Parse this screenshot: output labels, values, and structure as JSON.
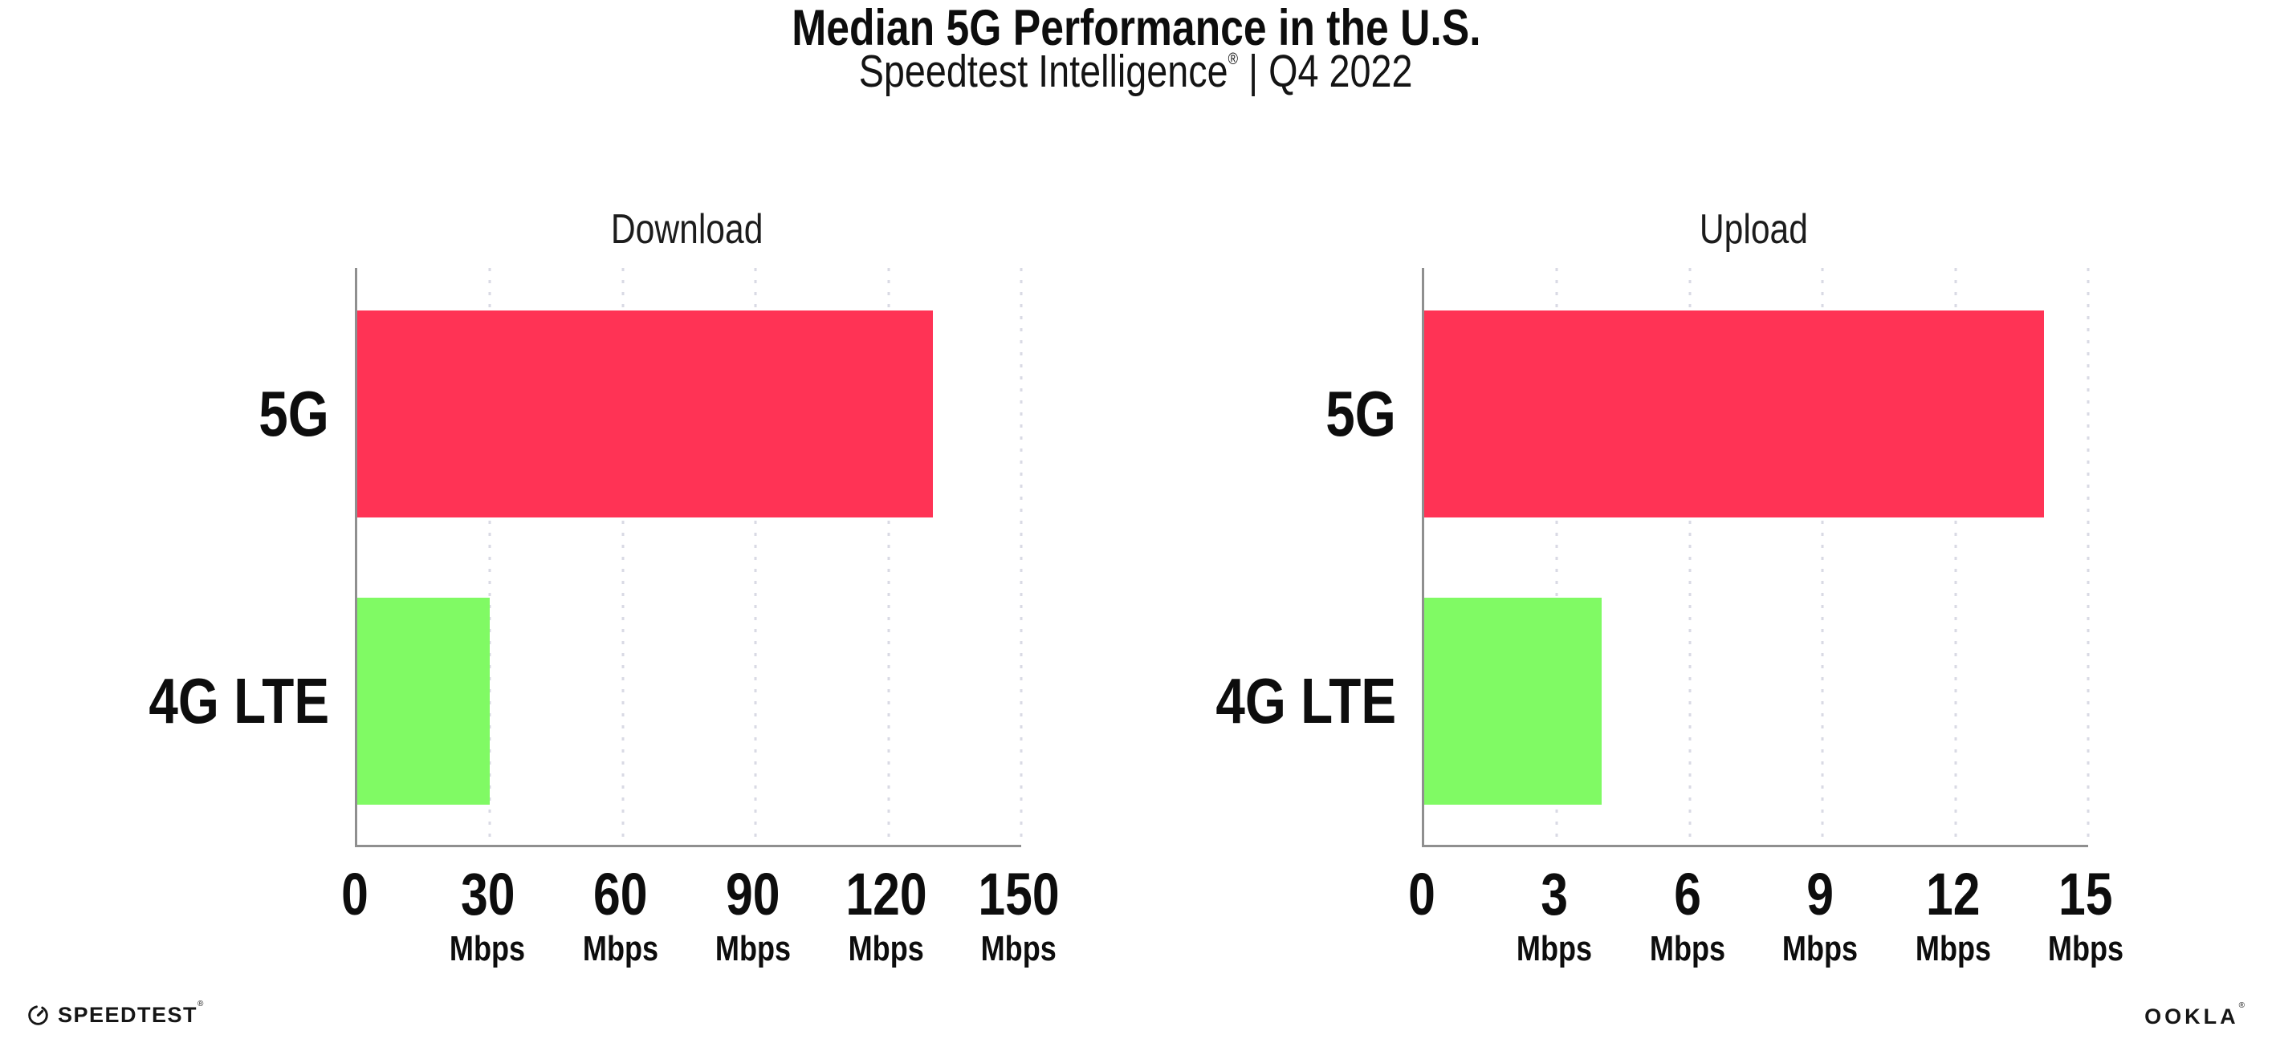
{
  "header": {
    "title": "Median 5G Performance in the U.S.",
    "subtitle_brand": "Speedtest Intelligence",
    "subtitle_mark": "®",
    "subtitle_tail": " | Q4 2022"
  },
  "chart_data": [
    {
      "type": "bar",
      "orientation": "horizontal",
      "title": "Download",
      "categories": [
        "5G",
        "4G LTE"
      ],
      "values": [
        130,
        30
      ],
      "unit": "Mbps",
      "xlim": [
        0,
        150
      ],
      "ticks": [
        0,
        30,
        60,
        90,
        120,
        150
      ],
      "tick_unit_label": "Mbps",
      "bar_colors": [
        "#FF3355",
        "#80FA64"
      ],
      "grid": "vertical-dotted",
      "legend": "none"
    },
    {
      "type": "bar",
      "orientation": "horizontal",
      "title": "Upload",
      "categories": [
        "5G",
        "4G LTE"
      ],
      "values": [
        14,
        4
      ],
      "unit": "Mbps",
      "xlim": [
        0,
        15
      ],
      "ticks": [
        0,
        3,
        6,
        9,
        12,
        15
      ],
      "tick_unit_label": "Mbps",
      "bar_colors": [
        "#FF3355",
        "#80FA64"
      ],
      "grid": "vertical-dotted",
      "legend": "none"
    }
  ],
  "footer": {
    "speedtest_label": "SPEEDTEST",
    "speedtest_mark": "®",
    "ookla_label": "OOKLA",
    "ookla_mark": "®"
  },
  "colors": {
    "bar_5g": "#FF3355",
    "bar_4g_lte": "#80FA64",
    "gridline": "#D9DAE4",
    "axis": "#8F8F8F",
    "text": "#0D0D0D"
  }
}
